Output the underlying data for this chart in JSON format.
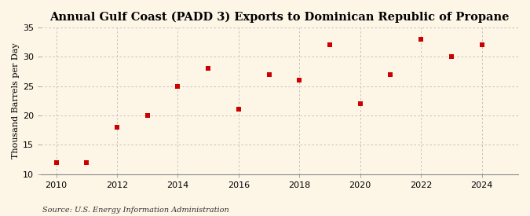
{
  "title": "Annual Gulf Coast (PADD 3) Exports to Dominican Republic of Propane",
  "ylabel": "Thousand Barrels per Day",
  "source": "Source: U.S. Energy Information Administration",
  "years": [
    2010,
    2011,
    2012,
    2013,
    2014,
    2015,
    2016,
    2017,
    2018,
    2019,
    2020,
    2021,
    2022,
    2023,
    2024
  ],
  "values": [
    12,
    12,
    18,
    20,
    25,
    28,
    21,
    27,
    26,
    32,
    22,
    27,
    33,
    30,
    32
  ],
  "marker_color": "#cc0000",
  "marker": "s",
  "marker_size": 4,
  "xlim": [
    2009.5,
    2025.2
  ],
  "ylim": [
    10,
    35
  ],
  "yticks": [
    10,
    15,
    20,
    25,
    30,
    35
  ],
  "xticks": [
    2010,
    2012,
    2014,
    2016,
    2018,
    2020,
    2022,
    2024
  ],
  "grid_color": "#bbbbbb",
  "bg_color": "#fdf5e6",
  "title_fontsize": 10.5,
  "label_fontsize": 8,
  "tick_fontsize": 8,
  "source_fontsize": 7
}
